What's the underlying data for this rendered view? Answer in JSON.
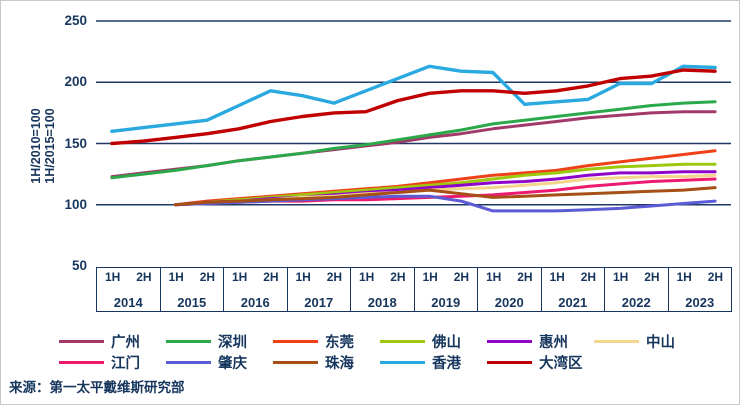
{
  "colors": {
    "text": "#17365D",
    "grid": "#1F3864",
    "background": "#FFFFFF",
    "frame_border": "#C9C9C9"
  },
  "source": "来源：第一太平戴维斯研究部",
  "chart_data": {
    "type": "line",
    "title": "",
    "ylabel_lines": [
      "1H/2010=100",
      "1H/2015=100"
    ],
    "y_ticks": [
      250,
      200,
      150,
      100,
      50
    ],
    "ylim": [
      50,
      250
    ],
    "grid": "horizontal",
    "legend_position": "bottom",
    "half_labels": [
      "1H",
      "2H"
    ],
    "years": [
      "2014",
      "2015",
      "2016",
      "2017",
      "2018",
      "2019",
      "2020",
      "2021",
      "2022",
      "2023"
    ],
    "x_points": [
      "1H2014",
      "2H2014",
      "1H2015",
      "2H2015",
      "1H2016",
      "2H2016",
      "1H2017",
      "2H2017",
      "1H2018",
      "2H2018",
      "1H2019",
      "2H2019",
      "1H2020",
      "2H2020",
      "1H2021",
      "2H2021",
      "1H2022",
      "2H2022",
      "1H2023",
      "2H2023"
    ],
    "series": [
      {
        "id": "guangzhou",
        "name": "广州",
        "color": "#A13A6B",
        "width": 3,
        "values": [
          123,
          126,
          129,
          132,
          136,
          139,
          142,
          145,
          148,
          151,
          155,
          158,
          162,
          165,
          168,
          171,
          173,
          175,
          176,
          176
        ]
      },
      {
        "id": "shenzhen",
        "name": "深圳",
        "color": "#2BA84A",
        "width": 3,
        "values": [
          122,
          125,
          128,
          132,
          136,
          139,
          142,
          146,
          149,
          153,
          157,
          161,
          166,
          169,
          172,
          175,
          178,
          181,
          183,
          184
        ]
      },
      {
        "id": "dongguan",
        "name": "东莞",
        "color": "#F04018",
        "width": 3,
        "values": [
          null,
          null,
          100,
          103,
          105,
          107,
          109,
          111,
          113,
          115,
          118,
          121,
          124,
          126,
          128,
          132,
          135,
          138,
          141,
          144
        ]
      },
      {
        "id": "foshan",
        "name": "佛山",
        "color": "#9CC80E",
        "width": 3,
        "values": [
          null,
          null,
          100,
          102,
          104,
          106,
          108,
          110,
          112,
          114,
          116,
          118,
          121,
          124,
          126,
          129,
          131,
          132,
          133,
          133
        ]
      },
      {
        "id": "huizhou",
        "name": "惠州",
        "color": "#8E05C9",
        "width": 3,
        "values": [
          null,
          null,
          100,
          102,
          103,
          105,
          106,
          108,
          110,
          112,
          114,
          116,
          118,
          119,
          121,
          124,
          126,
          126,
          127,
          127
        ]
      },
      {
        "id": "zhongshan",
        "name": "中山",
        "color": "#F3D58B",
        "width": 3,
        "values": [
          null,
          null,
          100,
          101,
          103,
          104,
          106,
          107,
          109,
          110,
          112,
          113,
          114,
          116,
          118,
          121,
          122,
          123,
          123,
          124
        ]
      },
      {
        "id": "jiangmen",
        "name": "江门",
        "color": "#EC1A6E",
        "width": 3,
        "values": [
          null,
          null,
          100,
          101,
          102,
          103,
          103,
          104,
          104,
          105,
          106,
          107,
          108,
          110,
          112,
          115,
          117,
          119,
          120,
          121
        ]
      },
      {
        "id": "zhaoqing",
        "name": "肇庆",
        "color": "#5B5BD6",
        "width": 3,
        "values": [
          null,
          null,
          100,
          101,
          102,
          103,
          104,
          105,
          106,
          107,
          107,
          103,
          95,
          95,
          95,
          96,
          97,
          99,
          101,
          103
        ]
      },
      {
        "id": "zhuhai",
        "name": "珠海",
        "color": "#A64F16",
        "width": 3,
        "values": [
          null,
          null,
          100,
          102,
          103,
          104,
          105,
          106,
          108,
          110,
          112,
          109,
          106,
          107,
          108,
          109,
          110,
          111,
          112,
          114
        ]
      },
      {
        "id": "hongkong",
        "name": "香港",
        "color": "#2AA9E0",
        "width": 3.4,
        "values": [
          160,
          163,
          166,
          169,
          181,
          193,
          189,
          183,
          193,
          203,
          213,
          209,
          208,
          182,
          184,
          186,
          199,
          199,
          213,
          212
        ]
      },
      {
        "id": "gba",
        "name": "大湾区",
        "color": "#C00000",
        "width": 3.4,
        "values": [
          150,
          152,
          155,
          158,
          162,
          168,
          172,
          175,
          176,
          185,
          191,
          193,
          193,
          191,
          193,
          197,
          203,
          205,
          210,
          209
        ]
      }
    ],
    "legend_rows": [
      [
        "广州",
        "深圳",
        "东莞",
        "佛山",
        "惠州",
        "中山"
      ],
      [
        "江门",
        "肇庆",
        "珠海",
        "香港",
        "大湾区"
      ]
    ]
  }
}
